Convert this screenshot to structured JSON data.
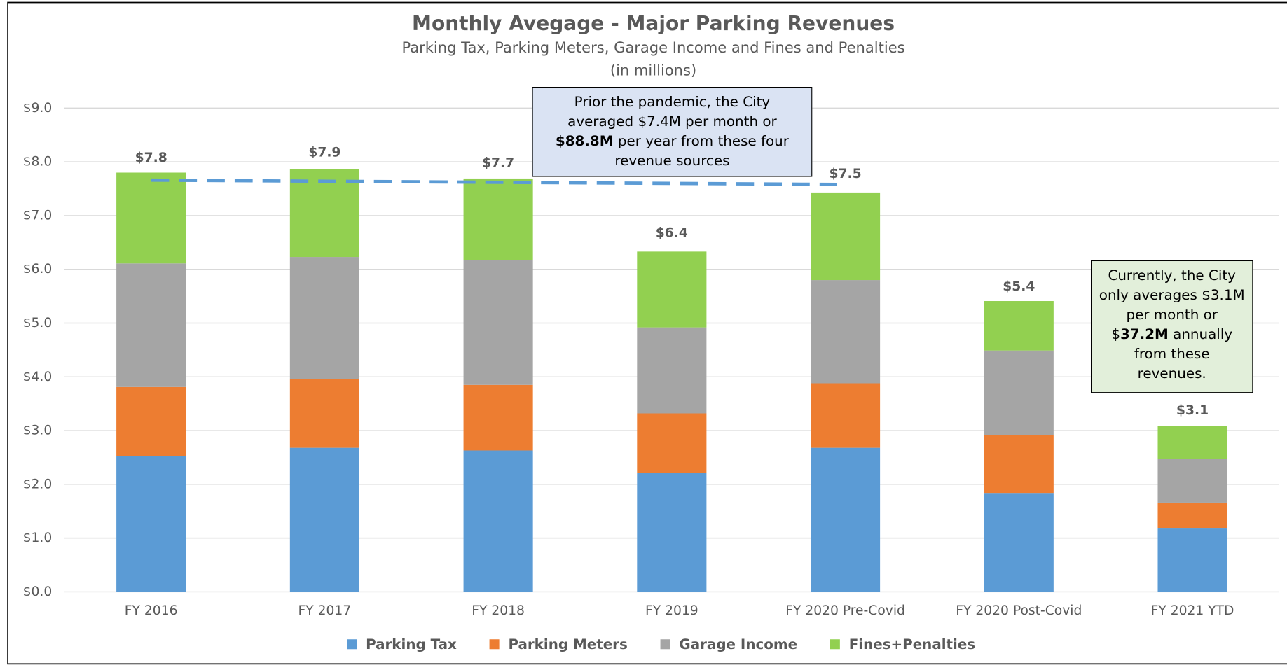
{
  "chart_data": {
    "type": "stacked_bar",
    "title": "Monthly Avegage - Major Parking Revenues",
    "subtitle": "Parking Tax, Parking Meters, Garage Income and Fines and Penalties",
    "units": "(in millions)",
    "categories": [
      "FY 2016",
      "FY 2017",
      "FY 2018",
      "FY 2019",
      "FY 2020 Pre-Covid",
      "FY 2020 Post-Covid",
      "FY 2021 YTD"
    ],
    "series": [
      {
        "name": "Parking Tax",
        "color": "#5b9bd5",
        "values": [
          2.53,
          2.68,
          2.63,
          2.21,
          2.68,
          1.84,
          1.19
        ]
      },
      {
        "name": "Parking Meters",
        "color": "#ed7d31",
        "values": [
          1.28,
          1.28,
          1.22,
          1.11,
          1.2,
          1.07,
          0.47
        ]
      },
      {
        "name": "Garage Income",
        "color": "#a5a5a5",
        "values": [
          2.3,
          2.27,
          2.32,
          1.6,
          1.92,
          1.58,
          0.81
        ]
      },
      {
        "name": "Fines+Penalties",
        "color": "#92d050",
        "values": [
          1.69,
          1.64,
          1.52,
          1.41,
          1.63,
          0.92,
          0.62
        ]
      }
    ],
    "totals": [
      7.8,
      7.9,
      7.7,
      6.4,
      7.5,
      5.4,
      3.1
    ],
    "total_labels": [
      "$7.8",
      "$7.9",
      "$7.7",
      "$6.4",
      "$7.5",
      "$5.4",
      "$3.1"
    ],
    "reference_line": {
      "color": "#5b9bd5",
      "values": [
        7.66,
        7.58
      ]
    },
    "ylim": [
      0,
      9
    ],
    "yticks": [
      {
        "value": 0,
        "label": "$0.0"
      },
      {
        "value": 1,
        "label": "$1.0"
      },
      {
        "value": 2,
        "label": "$2.0"
      },
      {
        "value": 3,
        "label": "$3.0"
      },
      {
        "value": 4,
        "label": "$4.0"
      },
      {
        "value": 5,
        "label": "$5.0"
      },
      {
        "value": 6,
        "label": "$6.0"
      },
      {
        "value": 7,
        "label": "$7.0"
      },
      {
        "value": 8,
        "label": "$8.0"
      },
      {
        "value": 9,
        "label": "$9.0"
      }
    ],
    "grid": true,
    "legend": "bottom",
    "annotations": [
      {
        "color": "#dae3f3",
        "parts": [
          "Prior the pandemic, the City averaged $7.4M per month or ",
          "$88.8M",
          " per year from these four revenue sources"
        ]
      },
      {
        "color": "#e2efda",
        "parts": [
          "Currently, the City only averages $3.1M per month or $",
          "37.2M",
          " annually from these revenues."
        ]
      }
    ]
  }
}
